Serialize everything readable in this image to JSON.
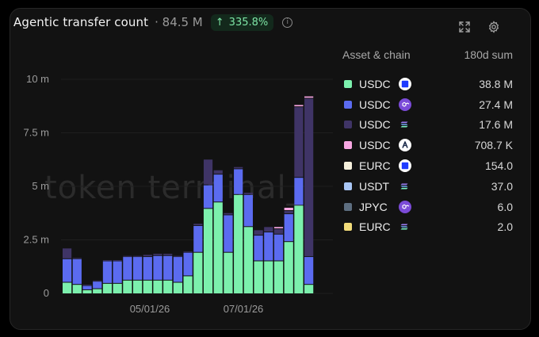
{
  "header": {
    "title": "Agentic transfer count",
    "total": "· 84.5 M",
    "change": "335.8%",
    "change_arrow": "↑",
    "info_icon": "i"
  },
  "icons": {
    "expand": "expand-icon",
    "settings": "gear-icon",
    "info": "info-icon"
  },
  "watermark": "token terminal_",
  "legend": {
    "col_asset": "Asset & chain",
    "col_value": "180d sum",
    "items": [
      {
        "asset": "USDC",
        "chain_icon": "base-icon",
        "value": "38.8 M",
        "color": "#7cf0ad"
      },
      {
        "asset": "USDC",
        "chain_icon": "polygon-icon",
        "value": "27.4 M",
        "color": "#5b6bf0"
      },
      {
        "asset": "USDC",
        "chain_icon": "solana-icon",
        "value": "17.6 M",
        "color": "#3f3466"
      },
      {
        "asset": "USDC",
        "chain_icon": "arbitrum-icon",
        "value": "708.7 K",
        "color": "#f7a6e2"
      },
      {
        "asset": "EURC",
        "chain_icon": "base-icon",
        "value": "154.0",
        "color": "#f5f0dc"
      },
      {
        "asset": "USDT",
        "chain_icon": "solana-icon",
        "value": "37.0",
        "color": "#a9c6f5"
      },
      {
        "asset": "JPYC",
        "chain_icon": "polygon-icon",
        "value": "6.0",
        "color": "#5d6e80"
      },
      {
        "asset": "EURC",
        "chain_icon": "solana-icon",
        "value": "2.0",
        "color": "#f2dc7a"
      }
    ]
  },
  "chart_data": {
    "type": "bar",
    "stacked": true,
    "x_tick_labels": [
      "05/01/26",
      "07/01/26"
    ],
    "y_tick_labels": [
      "0",
      "2.5 m",
      "5 m",
      "7.5 m",
      "10 m"
    ],
    "ylim": [
      0,
      10
    ],
    "y_unit": "m",
    "grid": true,
    "legend_position": "right",
    "series": [
      {
        "name": "USDC (Base)",
        "color": "#7cf0ad",
        "values": [
          0.5,
          0.4,
          0.15,
          0.2,
          0.45,
          0.45,
          0.6,
          0.6,
          0.6,
          0.6,
          0.6,
          0.5,
          0.8,
          1.9,
          3.95,
          4.25,
          1.9,
          4.6,
          3.1,
          1.5,
          1.5,
          1.5,
          2.4,
          4.1,
          0.4
        ]
      },
      {
        "name": "USDC (Polygon)",
        "color": "#5b6bf0",
        "values": [
          1.1,
          1.2,
          0.2,
          0.35,
          1.05,
          1.05,
          1.1,
          1.1,
          1.1,
          1.15,
          1.15,
          1.2,
          1.1,
          1.25,
          1.1,
          1.3,
          1.75,
          1.2,
          1.5,
          1.2,
          1.35,
          1.25,
          1.3,
          1.3,
          1.3
        ]
      },
      {
        "name": "USDC (Solana)",
        "color": "#3f3466",
        "values": [
          0.5,
          0.05,
          0.05,
          0.05,
          0.05,
          0.05,
          0.05,
          0.05,
          0.1,
          0.1,
          0.1,
          0.05,
          0.05,
          0.1,
          1.2,
          0.2,
          0.1,
          0.1,
          0.1,
          0.25,
          0.25,
          0.25,
          0.15,
          3.3,
          7.4
        ]
      },
      {
        "name": "USDC (Arbitrum)",
        "color": "#f7a6e2",
        "values": [
          0,
          0,
          0,
          0,
          0,
          0,
          0,
          0,
          0,
          0,
          0,
          0,
          0,
          0,
          0,
          0,
          0,
          0,
          0,
          0,
          0,
          0.1,
          0.15,
          0.1,
          0.1
        ]
      }
    ]
  }
}
